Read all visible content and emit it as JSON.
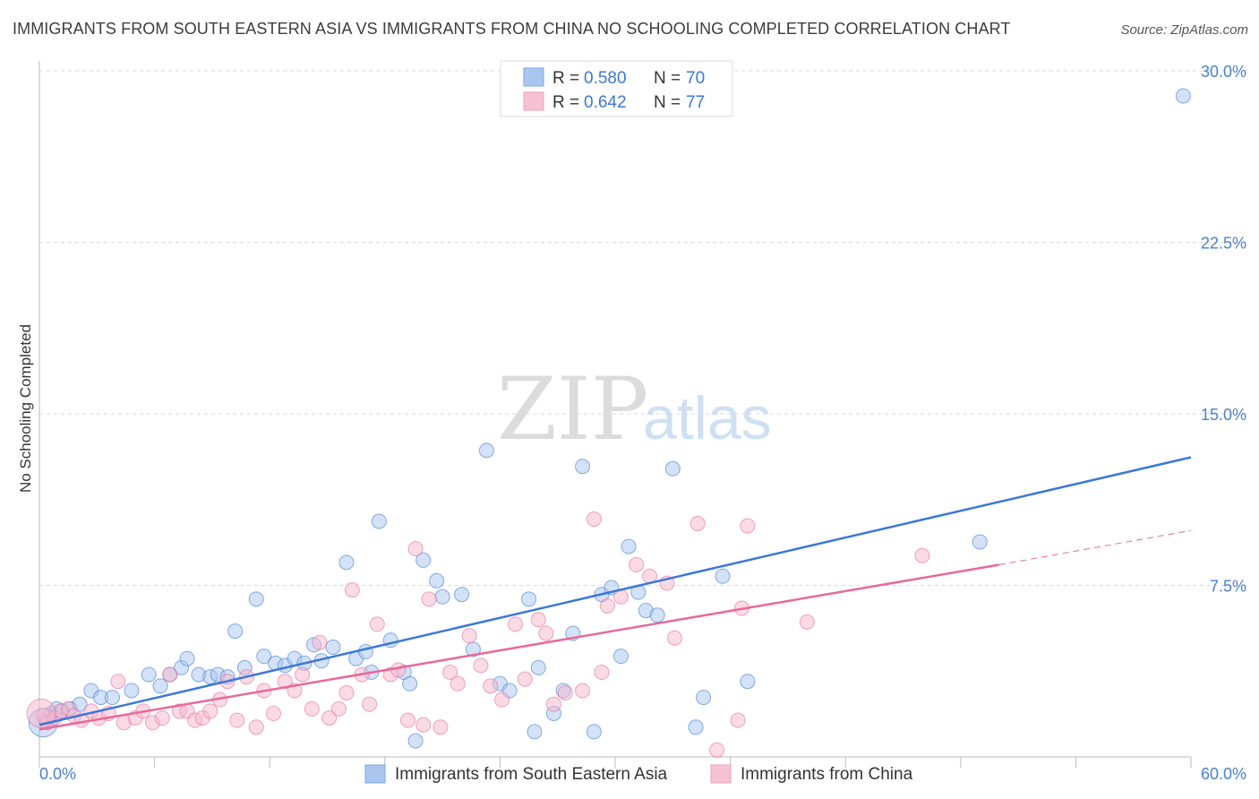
{
  "title": "IMMIGRANTS FROM SOUTH EASTERN ASIA VS IMMIGRANTS FROM CHINA NO SCHOOLING COMPLETED CORRELATION CHART",
  "source": "Source: ZipAtlas.com",
  "watermark": {
    "part1": "ZIP",
    "part2": "atlas"
  },
  "colors": {
    "blue": "#3b78d8",
    "blue_fill": "#aac6ef",
    "pink": "#e8699a",
    "pink_fill": "#f6b8cc",
    "grid": "#d9d9d9",
    "tick_text": "#4a7fd0"
  },
  "legend": {
    "r_label": "R =",
    "n_label": "N =",
    "blue": {
      "r": "0.580",
      "n": "70"
    },
    "pink": {
      "r": "0.642",
      "n": "77"
    }
  },
  "chart_data": {
    "type": "scatter",
    "title": "IMMIGRANTS FROM SOUTH EASTERN ASIA VS IMMIGRANTS FROM CHINA NO SCHOOLING COMPLETED CORRELATION CHART",
    "ylabel": "No Schooling Completed",
    "xlabel": "",
    "xlim": [
      0,
      60
    ],
    "ylim": [
      0,
      30
    ],
    "x_tick_labels": [
      "0.0%",
      "60.0%"
    ],
    "y_ticks": [
      7.5,
      15.0,
      22.5,
      30.0
    ],
    "y_tick_labels": [
      "7.5%",
      "15.0%",
      "22.5%",
      "30.0%"
    ],
    "grid": "horizontal dashed",
    "legend_position": "top-center",
    "series": [
      {
        "name": "Immigrants from South Eastern Asia",
        "color": "#3b78d8",
        "trend": {
          "x": [
            0,
            60
          ],
          "y": [
            1.4,
            13.1
          ]
        },
        "points": [
          [
            0.3,
            1.6
          ],
          [
            0.6,
            1.9
          ],
          [
            0.9,
            2.1
          ],
          [
            1.2,
            2.0
          ],
          [
            1.6,
            2.1
          ],
          [
            2.1,
            2.3
          ],
          [
            2.7,
            2.9
          ],
          [
            3.2,
            2.6
          ],
          [
            3.8,
            2.6
          ],
          [
            4.8,
            2.9
          ],
          [
            5.7,
            3.6
          ],
          [
            6.3,
            3.1
          ],
          [
            6.8,
            3.6
          ],
          [
            7.4,
            3.9
          ],
          [
            7.7,
            4.3
          ],
          [
            8.3,
            3.6
          ],
          [
            8.9,
            3.5
          ],
          [
            9.3,
            3.6
          ],
          [
            9.8,
            3.5
          ],
          [
            10.2,
            5.5
          ],
          [
            10.7,
            3.9
          ],
          [
            11.3,
            6.9
          ],
          [
            11.7,
            4.4
          ],
          [
            12.3,
            4.1
          ],
          [
            12.8,
            4.0
          ],
          [
            13.3,
            4.3
          ],
          [
            13.8,
            4.1
          ],
          [
            14.3,
            4.9
          ],
          [
            14.7,
            4.2
          ],
          [
            15.3,
            4.8
          ],
          [
            16.0,
            8.5
          ],
          [
            16.5,
            4.3
          ],
          [
            17.0,
            4.6
          ],
          [
            17.3,
            3.7
          ],
          [
            17.7,
            10.3
          ],
          [
            18.3,
            5.1
          ],
          [
            19.0,
            3.7
          ],
          [
            19.3,
            3.2
          ],
          [
            19.6,
            0.7
          ],
          [
            20.0,
            8.6
          ],
          [
            20.7,
            7.7
          ],
          [
            21.0,
            7.0
          ],
          [
            22.0,
            7.1
          ],
          [
            22.6,
            4.7
          ],
          [
            23.3,
            13.4
          ],
          [
            24.0,
            3.2
          ],
          [
            24.5,
            2.9
          ],
          [
            25.5,
            6.9
          ],
          [
            25.8,
            1.1
          ],
          [
            26.0,
            3.9
          ],
          [
            26.8,
            1.9
          ],
          [
            27.3,
            2.9
          ],
          [
            27.8,
            5.4
          ],
          [
            28.3,
            12.7
          ],
          [
            28.9,
            1.1
          ],
          [
            29.3,
            7.1
          ],
          [
            29.8,
            7.4
          ],
          [
            30.3,
            4.4
          ],
          [
            30.7,
            9.2
          ],
          [
            31.2,
            7.2
          ],
          [
            31.6,
            6.4
          ],
          [
            32.2,
            6.2
          ],
          [
            33.0,
            12.6
          ],
          [
            34.2,
            1.3
          ],
          [
            34.6,
            2.6
          ],
          [
            35.6,
            7.9
          ],
          [
            36.9,
            3.3
          ],
          [
            49.0,
            9.4
          ],
          [
            59.6,
            28.9
          ],
          [
            0.2,
            1.5
          ]
        ]
      },
      {
        "name": "Immigrants from China",
        "color": "#e8699a",
        "trend": {
          "x": [
            0,
            50
          ],
          "y": [
            1.2,
            8.4
          ]
        },
        "trend_dashed": {
          "x": [
            50,
            60
          ],
          "y": [
            8.4,
            9.9
          ]
        },
        "points": [
          [
            0.2,
            1.8
          ],
          [
            0.4,
            1.5
          ],
          [
            0.8,
            1.7
          ],
          [
            1.1,
            2.0
          ],
          [
            1.5,
            2.1
          ],
          [
            1.8,
            1.8
          ],
          [
            2.2,
            1.6
          ],
          [
            2.7,
            2.0
          ],
          [
            3.1,
            1.7
          ],
          [
            3.6,
            1.9
          ],
          [
            4.1,
            3.3
          ],
          [
            4.4,
            1.5
          ],
          [
            5.0,
            1.7
          ],
          [
            5.4,
            2.0
          ],
          [
            5.9,
            1.5
          ],
          [
            6.4,
            1.7
          ],
          [
            6.8,
            3.6
          ],
          [
            7.3,
            2.0
          ],
          [
            7.7,
            2.0
          ],
          [
            8.1,
            1.6
          ],
          [
            8.5,
            1.7
          ],
          [
            8.9,
            2.0
          ],
          [
            9.4,
            2.5
          ],
          [
            9.8,
            3.3
          ],
          [
            10.3,
            1.6
          ],
          [
            10.8,
            3.5
          ],
          [
            11.3,
            1.3
          ],
          [
            11.7,
            2.9
          ],
          [
            12.2,
            1.9
          ],
          [
            12.8,
            3.3
          ],
          [
            13.3,
            2.9
          ],
          [
            13.7,
            3.6
          ],
          [
            14.2,
            2.1
          ],
          [
            14.6,
            5.0
          ],
          [
            15.1,
            1.7
          ],
          [
            15.6,
            2.1
          ],
          [
            16.0,
            2.8
          ],
          [
            16.3,
            7.3
          ],
          [
            16.8,
            3.6
          ],
          [
            17.2,
            2.3
          ],
          [
            17.6,
            5.8
          ],
          [
            18.3,
            3.6
          ],
          [
            18.7,
            3.8
          ],
          [
            19.2,
            1.6
          ],
          [
            19.6,
            9.1
          ],
          [
            20.0,
            1.4
          ],
          [
            20.3,
            6.9
          ],
          [
            20.9,
            1.3
          ],
          [
            21.4,
            3.7
          ],
          [
            21.8,
            3.2
          ],
          [
            22.4,
            5.3
          ],
          [
            23.0,
            4.0
          ],
          [
            23.5,
            3.1
          ],
          [
            24.1,
            2.5
          ],
          [
            24.8,
            5.8
          ],
          [
            25.3,
            3.4
          ],
          [
            26.0,
            6.0
          ],
          [
            26.4,
            5.4
          ],
          [
            26.8,
            2.3
          ],
          [
            27.4,
            2.8
          ],
          [
            28.3,
            2.9
          ],
          [
            28.9,
            10.4
          ],
          [
            29.3,
            3.7
          ],
          [
            29.6,
            6.6
          ],
          [
            30.3,
            7.0
          ],
          [
            31.1,
            8.4
          ],
          [
            31.8,
            7.9
          ],
          [
            32.7,
            7.6
          ],
          [
            33.1,
            5.2
          ],
          [
            34.3,
            10.2
          ],
          [
            35.3,
            0.3
          ],
          [
            36.4,
            1.6
          ],
          [
            36.6,
            6.5
          ],
          [
            36.9,
            10.1
          ],
          [
            40.0,
            5.9
          ],
          [
            46.0,
            8.8
          ],
          [
            0.1,
            1.9
          ]
        ]
      }
    ]
  }
}
